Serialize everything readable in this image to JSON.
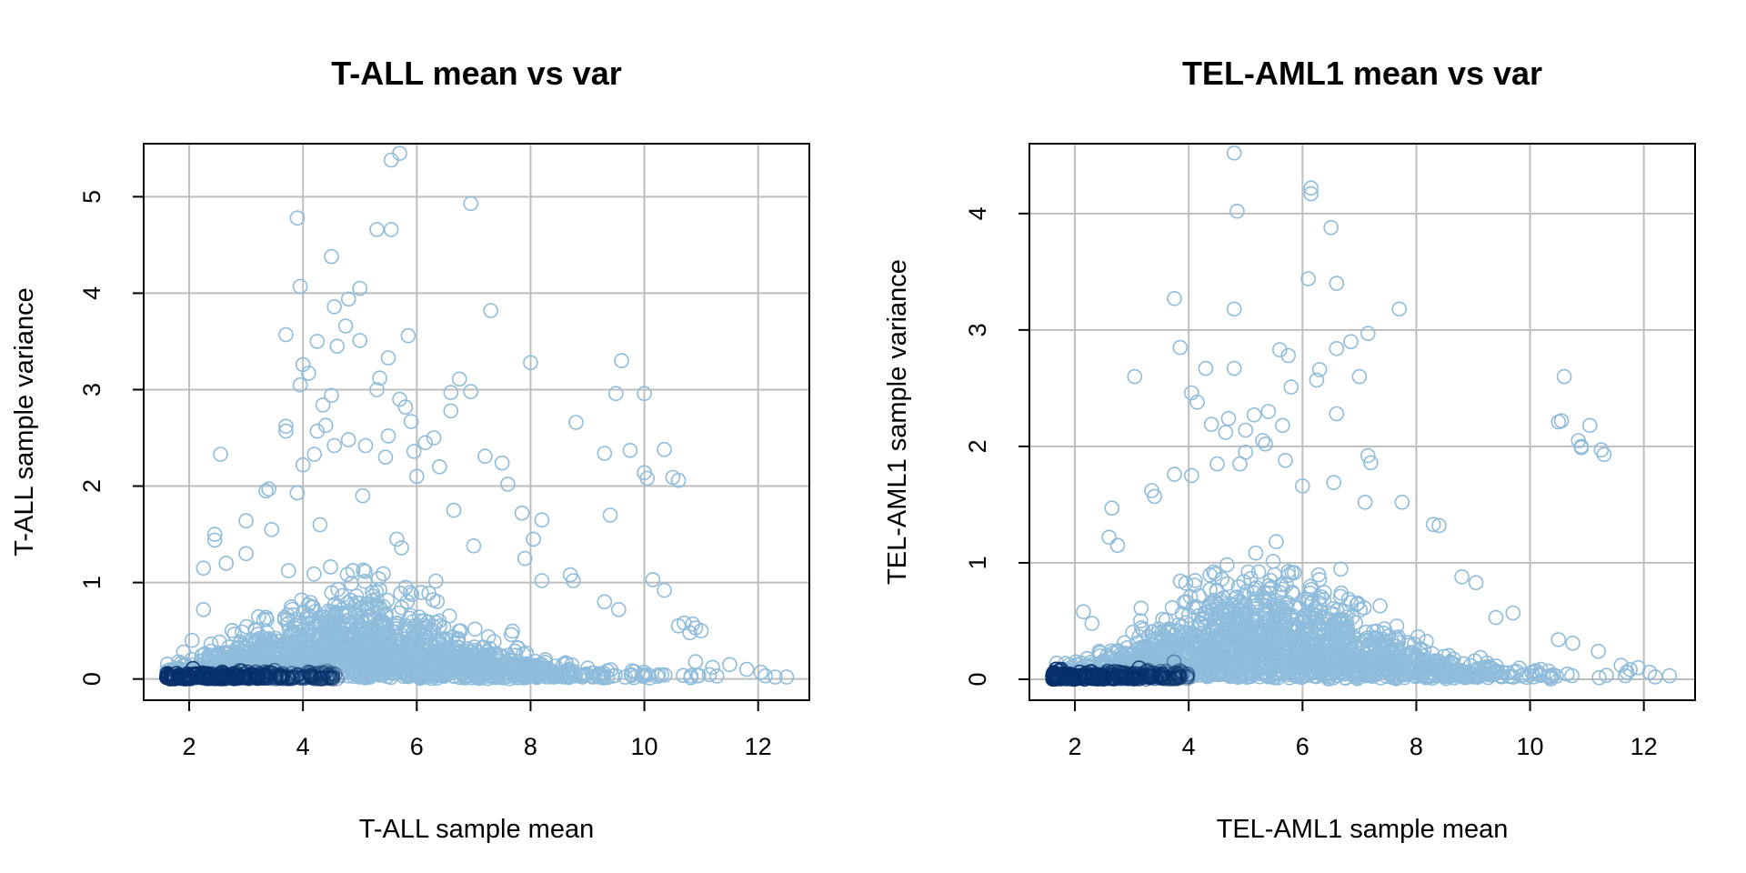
{
  "colors": {
    "point": "#8fbcdb",
    "point_dense": "#08306b",
    "grid": "#bebebe",
    "frame": "#000000"
  },
  "chart_data": [
    {
      "type": "scatter",
      "title": "T-ALL mean vs var",
      "xlabel": "T-ALL sample mean",
      "ylabel": "T-ALL sample variance",
      "xlim": [
        1.2,
        12.9
      ],
      "ylim": [
        -0.22,
        5.55
      ],
      "xticks": [
        2,
        4,
        6,
        8,
        10,
        12
      ],
      "yticks": [
        0,
        1,
        2,
        3,
        4,
        5
      ],
      "grid": true,
      "marker": "open-circle",
      "density_shading": "dark blue where points are densest (low mean, low variance)",
      "points": [
        [
          5.7,
          5.45
        ],
        [
          5.55,
          5.38
        ],
        [
          6.95,
          4.93
        ],
        [
          3.9,
          4.78
        ],
        [
          5.3,
          4.66
        ],
        [
          5.55,
          4.66
        ],
        [
          4.5,
          4.38
        ],
        [
          3.95,
          4.07
        ],
        [
          5.0,
          4.05
        ],
        [
          4.8,
          3.94
        ],
        [
          4.55,
          3.86
        ],
        [
          7.3,
          3.82
        ],
        [
          4.75,
          3.66
        ],
        [
          3.7,
          3.57
        ],
        [
          5.85,
          3.56
        ],
        [
          5.0,
          3.51
        ],
        [
          4.25,
          3.5
        ],
        [
          4.6,
          3.45
        ],
        [
          5.5,
          3.33
        ],
        [
          9.6,
          3.3
        ],
        [
          4.0,
          3.26
        ],
        [
          8.0,
          3.28
        ],
        [
          4.1,
          3.17
        ],
        [
          5.35,
          3.12
        ],
        [
          6.75,
          3.11
        ],
        [
          3.95,
          3.05
        ],
        [
          5.3,
          3.0
        ],
        [
          6.6,
          2.97
        ],
        [
          6.95,
          2.98
        ],
        [
          9.5,
          2.96
        ],
        [
          10.0,
          2.96
        ],
        [
          4.5,
          2.94
        ],
        [
          5.7,
          2.9
        ],
        [
          4.35,
          2.84
        ],
        [
          5.8,
          2.82
        ],
        [
          6.6,
          2.78
        ],
        [
          5.9,
          2.67
        ],
        [
          8.8,
          2.66
        ],
        [
          3.7,
          2.62
        ],
        [
          4.4,
          2.63
        ],
        [
          3.7,
          2.57
        ],
        [
          4.25,
          2.57
        ],
        [
          5.5,
          2.52
        ],
        [
          6.3,
          2.5
        ],
        [
          4.8,
          2.48
        ],
        [
          6.15,
          2.45
        ],
        [
          4.55,
          2.42
        ],
        [
          5.1,
          2.42
        ],
        [
          9.75,
          2.37
        ],
        [
          10.35,
          2.38
        ],
        [
          5.95,
          2.36
        ],
        [
          4.2,
          2.33
        ],
        [
          5.45,
          2.3
        ],
        [
          9.3,
          2.34
        ],
        [
          2.55,
          2.33
        ],
        [
          7.2,
          2.31
        ],
        [
          7.5,
          2.24
        ],
        [
          4.0,
          2.22
        ],
        [
          6.4,
          2.2
        ],
        [
          10.0,
          2.14
        ],
        [
          10.05,
          2.08
        ],
        [
          10.5,
          2.09
        ],
        [
          10.6,
          2.06
        ],
        [
          6.0,
          2.1
        ],
        [
          7.6,
          2.02
        ],
        [
          3.4,
          1.97
        ],
        [
          3.35,
          1.95
        ],
        [
          3.9,
          1.93
        ],
        [
          5.05,
          1.9
        ],
        [
          9.4,
          1.7
        ],
        [
          7.85,
          1.72
        ],
        [
          6.65,
          1.75
        ],
        [
          8.2,
          1.65
        ],
        [
          3.0,
          1.64
        ],
        [
          4.3,
          1.6
        ],
        [
          3.45,
          1.55
        ],
        [
          2.45,
          1.5
        ],
        [
          2.45,
          1.44
        ],
        [
          8.05,
          1.45
        ],
        [
          5.65,
          1.45
        ],
        [
          7.0,
          1.38
        ],
        [
          3.0,
          1.3
        ],
        [
          2.65,
          1.2
        ],
        [
          7.9,
          1.25
        ],
        [
          8.7,
          1.08
        ],
        [
          8.75,
          1.02
        ],
        [
          8.2,
          1.02
        ],
        [
          10.15,
          1.03
        ],
        [
          10.35,
          0.92
        ],
        [
          2.25,
          1.15
        ],
        [
          9.3,
          0.8
        ],
        [
          9.55,
          0.72
        ],
        [
          10.7,
          0.58
        ],
        [
          10.85,
          0.57
        ],
        [
          10.9,
          0.53
        ],
        [
          11.0,
          0.5
        ],
        [
          10.6,
          0.55
        ],
        [
          10.8,
          0.48
        ],
        [
          2.05,
          0.4
        ],
        [
          2.25,
          0.72
        ],
        [
          1.9,
          0.28
        ],
        [
          11.5,
          0.15
        ],
        [
          12.05,
          0.07
        ],
        [
          12.3,
          0.02
        ],
        [
          12.5,
          0.02
        ],
        [
          11.8,
          0.1
        ],
        [
          11.2,
          0.12
        ],
        [
          10.9,
          0.18
        ]
      ]
    },
    {
      "type": "scatter",
      "title": "TEL-AML1 mean vs var",
      "xlabel": "TEL-AML1 sample mean",
      "ylabel": "TEL-AML1 sample variance",
      "xlim": [
        1.2,
        12.9
      ],
      "ylim": [
        -0.18,
        4.6
      ],
      "xticks": [
        2,
        4,
        6,
        8,
        10,
        12
      ],
      "yticks": [
        0,
        1,
        2,
        3,
        4
      ],
      "grid": true,
      "marker": "open-circle",
      "density_shading": "dark blue where points are densest (low mean, low variance)",
      "points": [
        [
          4.8,
          4.52
        ],
        [
          6.15,
          4.22
        ],
        [
          6.15,
          4.17
        ],
        [
          4.85,
          4.02
        ],
        [
          6.5,
          3.88
        ],
        [
          6.1,
          3.44
        ],
        [
          6.6,
          3.4
        ],
        [
          3.75,
          3.27
        ],
        [
          4.8,
          3.18
        ],
        [
          7.7,
          3.18
        ],
        [
          7.15,
          2.97
        ],
        [
          6.85,
          2.9
        ],
        [
          3.85,
          2.85
        ],
        [
          5.6,
          2.83
        ],
        [
          6.6,
          2.84
        ],
        [
          5.75,
          2.78
        ],
        [
          4.3,
          2.67
        ],
        [
          4.8,
          2.67
        ],
        [
          6.3,
          2.66
        ],
        [
          3.05,
          2.6
        ],
        [
          7.0,
          2.6
        ],
        [
          6.25,
          2.57
        ],
        [
          10.6,
          2.6
        ],
        [
          5.8,
          2.51
        ],
        [
          4.05,
          2.46
        ],
        [
          4.15,
          2.38
        ],
        [
          6.6,
          2.28
        ],
        [
          5.4,
          2.3
        ],
        [
          5.15,
          2.27
        ],
        [
          4.7,
          2.24
        ],
        [
          4.4,
          2.19
        ],
        [
          10.5,
          2.21
        ],
        [
          10.55,
          2.22
        ],
        [
          11.05,
          2.18
        ],
        [
          5.65,
          2.18
        ],
        [
          5.0,
          2.14
        ],
        [
          4.65,
          2.12
        ],
        [
          10.85,
          2.05
        ],
        [
          10.9,
          2.0
        ],
        [
          10.9,
          1.99
        ],
        [
          11.25,
          1.97
        ],
        [
          11.3,
          1.93
        ],
        [
          5.3,
          2.05
        ],
        [
          5.35,
          2.02
        ],
        [
          5.0,
          1.95
        ],
        [
          7.15,
          1.92
        ],
        [
          7.2,
          1.86
        ],
        [
          4.9,
          1.85
        ],
        [
          5.7,
          1.88
        ],
        [
          4.5,
          1.85
        ],
        [
          4.05,
          1.75
        ],
        [
          3.75,
          1.76
        ],
        [
          6.55,
          1.69
        ],
        [
          6.0,
          1.66
        ],
        [
          3.35,
          1.62
        ],
        [
          3.4,
          1.57
        ],
        [
          7.75,
          1.52
        ],
        [
          7.1,
          1.52
        ],
        [
          2.15,
          0.58
        ],
        [
          2.3,
          0.48
        ],
        [
          2.6,
          1.22
        ],
        [
          2.75,
          1.15
        ],
        [
          2.65,
          1.47
        ],
        [
          8.3,
          1.33
        ],
        [
          8.4,
          1.32
        ],
        [
          8.8,
          0.88
        ],
        [
          9.05,
          0.83
        ],
        [
          9.4,
          0.53
        ],
        [
          9.7,
          0.57
        ],
        [
          10.5,
          0.34
        ],
        [
          10.75,
          0.31
        ],
        [
          11.2,
          0.24
        ],
        [
          11.6,
          0.12
        ],
        [
          11.9,
          0.1
        ],
        [
          12.1,
          0.06
        ],
        [
          12.45,
          0.03
        ],
        [
          12.2,
          0.02
        ],
        [
          11.7,
          0.06
        ]
      ]
    }
  ]
}
